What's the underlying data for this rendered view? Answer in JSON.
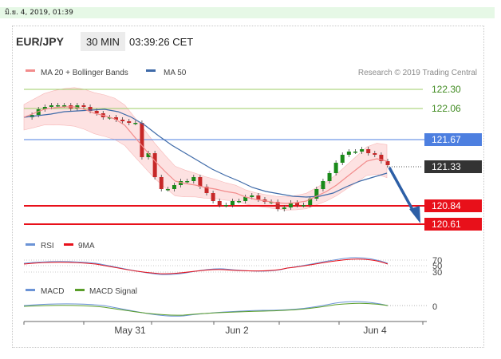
{
  "datebar_text": "มิ.ย. 4, 2019, 01:39",
  "header": {
    "symbol": "EUR/JPY",
    "timeframe": "30 MIN",
    "time": "03:39:26 CET"
  },
  "copyright": "Research © 2019 Trading Central",
  "colors": {
    "ma20": "#f28c8c",
    "ma50": "#3e6aa8",
    "band": "#fde2e2",
    "green_level": "#9ccc65",
    "blue_level": "#4d7fe0",
    "red_level": "#e8101a",
    "current_box": "#333333",
    "arrow": "#2d5fa6",
    "rsi": "#6b93d6",
    "macd": "#6b93d6",
    "macd_signal": "#5a9e2a",
    "candle_up": "#1a8a1a",
    "candle_down": "#c62828"
  },
  "chart_data": {
    "type": "candlestick",
    "title": "EUR/JPY 30 MIN",
    "x_ticks": [
      "May 31",
      "Jun 2",
      "Jun 4"
    ],
    "levels": [
      {
        "value": 122.3,
        "label": "122.30",
        "kind": "resistance",
        "color": "#6aa84f"
      },
      {
        "value": 122.06,
        "label": "122.06",
        "kind": "resistance",
        "color": "#6aa84f"
      },
      {
        "value": 121.67,
        "label": "121.67",
        "kind": "pivot",
        "color": "#2f6bea"
      },
      {
        "value": 121.33,
        "label": "121.33",
        "kind": "current",
        "color": "#333333"
      },
      {
        "value": 120.84,
        "label": "120.84",
        "kind": "target",
        "color": "#e8101a"
      },
      {
        "value": 120.61,
        "label": "120.61",
        "kind": "target",
        "color": "#e8101a"
      }
    ],
    "price_legend": [
      "MA 20 + Bollinger Bands",
      "MA 50"
    ],
    "price_path": [
      121.95,
      121.98,
      122.05,
      122.08,
      122.1,
      122.1,
      122.1,
      122.06,
      122.1,
      122.08,
      122.03,
      122.0,
      121.95,
      121.95,
      121.92,
      121.9,
      121.88,
      121.88,
      121.45,
      121.5,
      121.2,
      121.05,
      121.05,
      121.1,
      121.15,
      121.15,
      121.2,
      121.08,
      121.0,
      120.9,
      120.85,
      120.85,
      120.9,
      120.9,
      120.95,
      120.97,
      120.92,
      120.89,
      120.89,
      120.8,
      120.82,
      120.88,
      120.85,
      120.85,
      120.93,
      121.05,
      121.15,
      121.25,
      121.38,
      121.48,
      121.52,
      121.52,
      121.55,
      121.5,
      121.48,
      121.4,
      121.35
    ],
    "ma20": [
      121.95,
      122.0,
      122.05,
      122.07,
      122.08,
      122.08,
      122.05,
      122.0,
      121.97,
      121.93,
      121.85,
      121.7,
      121.55,
      121.4,
      121.27,
      121.15,
      121.12,
      121.1,
      121.07,
      121.05,
      121.02,
      121.0,
      120.95,
      120.92,
      120.9,
      120.88,
      120.87,
      120.88,
      120.9,
      120.96,
      121.02,
      121.1,
      121.2,
      121.3,
      121.4,
      121.43,
      121.4
    ],
    "ma50": [
      121.95,
      121.97,
      121.99,
      122.02,
      122.03,
      122.04,
      122.05,
      122.02,
      121.95,
      121.85,
      121.72,
      121.6,
      121.5,
      121.4,
      121.3,
      121.22,
      121.15,
      121.07,
      121.02,
      120.99,
      120.96,
      120.95,
      120.96,
      121.0,
      121.08,
      121.15,
      121.2,
      121.25
    ],
    "rsi": {
      "legend": [
        "RSI",
        "9MA"
      ],
      "levels": [
        70,
        50,
        30
      ]
    },
    "macd": {
      "legend": [
        "MACD",
        "MACD Signal"
      ],
      "zero_label": "0"
    }
  }
}
